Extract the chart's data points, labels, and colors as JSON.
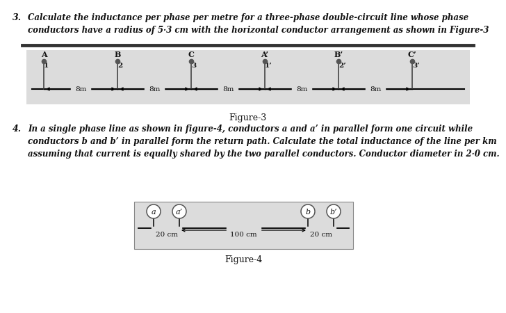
{
  "bg_color": "#ffffff",
  "fig3_bg": "#dcdcdc",
  "fig4_bg": "#dcdcdc",
  "q3_num": "3.",
  "q3_text": "Calculate the inductance per phase per metre for a three-phase double-circuit line whose phase\nconductors have a radius of 5·3 cm with the horizontal conductor arrangement as shown in Figure-3",
  "fig3_conductors_top": [
    "A",
    "B",
    "C",
    "A’",
    "B’",
    "C’"
  ],
  "fig3_conductors_bot": [
    "1",
    "2",
    "3",
    "1’",
    "2’",
    "3’"
  ],
  "fig3_spacing_label": "8m",
  "fig3_caption": "Figure-3",
  "q4_num": "4.",
  "q4_text": "In a single phase line as shown in figure-4, conductors a and a’ in parallel form one circuit while\nconductors b and b’ in parallel form the return path. Calculate the total inductance of the line per km\nassuming that current is equally shared by the two parallel conductors. Conductor diameter in 2·0 cm.",
  "fig4_conductors": [
    "a",
    "a’",
    "b",
    "b’"
  ],
  "fig4_spacing_labels": [
    "20 cm",
    "100 cm",
    "20 cm"
  ],
  "fig4_caption": "Figure-4",
  "separator_color": "#555555",
  "line_color": "#333333",
  "text_color": "#111111"
}
